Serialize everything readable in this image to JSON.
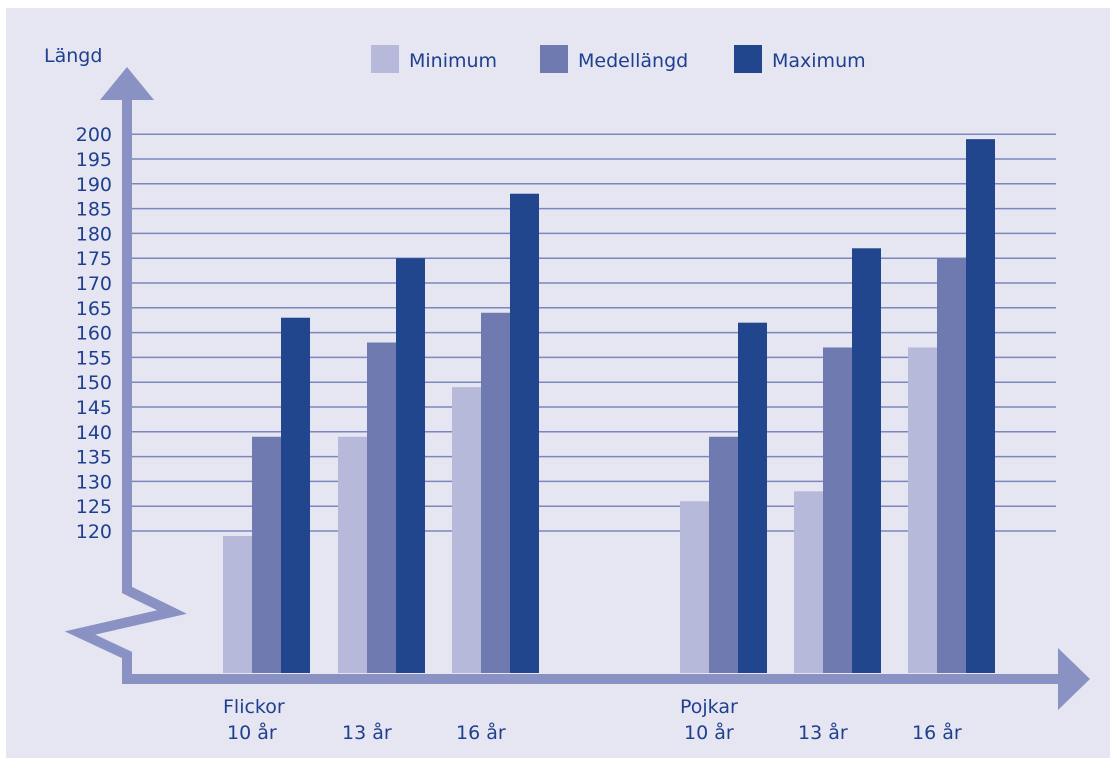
{
  "chart_data": {
    "type": "bar",
    "ylabel": "Längd",
    "ylim": [
      120,
      200
    ],
    "y_axis_break": true,
    "yticks": [
      120,
      125,
      130,
      135,
      140,
      145,
      150,
      155,
      160,
      165,
      170,
      175,
      180,
      185,
      190,
      195,
      200
    ],
    "grid": true,
    "legend_position": "top-center",
    "groups": [
      {
        "label": "Flickor",
        "categories": [
          "10 år",
          "13 år",
          "16 år"
        ]
      },
      {
        "label": "Pojkar",
        "categories": [
          "10 år",
          "13 år",
          "16 år"
        ]
      }
    ],
    "series": [
      {
        "name": "Minimum",
        "color": "#b6b9da",
        "values": [
          119,
          139,
          149,
          126,
          128,
          157
        ]
      },
      {
        "name": "Medellängd",
        "color": "#6e7ab0",
        "values": [
          139,
          158,
          164,
          139,
          157,
          175
        ]
      },
      {
        "name": "Maximum",
        "color": "#22468e",
        "values": [
          163,
          175,
          188,
          162,
          177,
          199
        ]
      }
    ],
    "colors": {
      "background": "#e6e6f2",
      "axis": "#8a92c4",
      "grid": "#7c86bf",
      "text": "#1f3f8f"
    }
  }
}
